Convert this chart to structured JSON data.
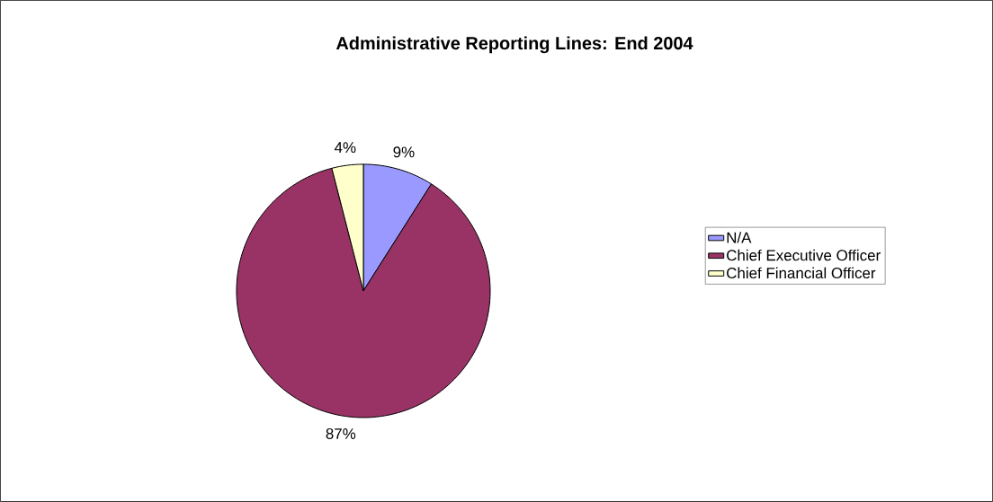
{
  "chart_data": {
    "type": "pie",
    "title": "Administrative Reporting Lines: End 2004",
    "categories": [
      "N/A",
      "Chief Executive Officer",
      "Chief Financial Officer"
    ],
    "values": [
      9,
      87,
      4
    ],
    "colors": [
      "#9999ff",
      "#993366",
      "#ffffcc"
    ],
    "value_labels": [
      "9%",
      "87%",
      "4%"
    ],
    "legend": "right"
  }
}
